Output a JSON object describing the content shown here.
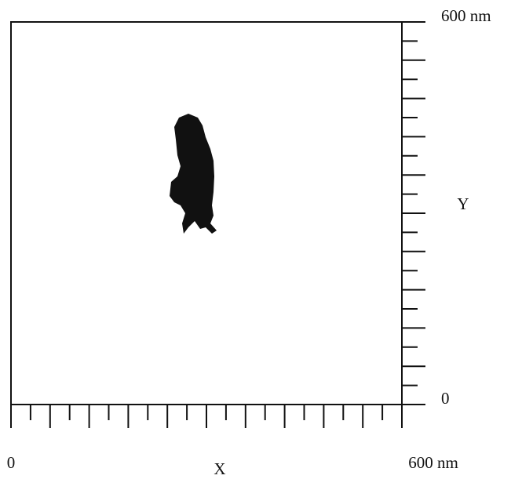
{
  "chart_data": {
    "type": "image",
    "xlabel": "X",
    "ylabel": "Y",
    "xlim": [
      0,
      600
    ],
    "ylim": [
      0,
      600
    ],
    "xticks": [
      {
        "value": 0,
        "label": "0"
      },
      {
        "value": 600,
        "label": "600 nm"
      }
    ],
    "yticks": [
      {
        "value": 0,
        "label": "0"
      },
      {
        "value": 600,
        "label": "600 nm"
      }
    ],
    "xminorticks": [
      0,
      30,
      60,
      90,
      120,
      150,
      180,
      210,
      240,
      270,
      300,
      330,
      360,
      390,
      420,
      450,
      480,
      510,
      540,
      570,
      600
    ],
    "yminorticks": [
      0,
      30,
      60,
      90,
      120,
      150,
      180,
      210,
      240,
      270,
      300,
      330,
      360,
      390,
      420,
      450,
      480,
      510,
      540,
      570,
      600
    ]
  }
}
